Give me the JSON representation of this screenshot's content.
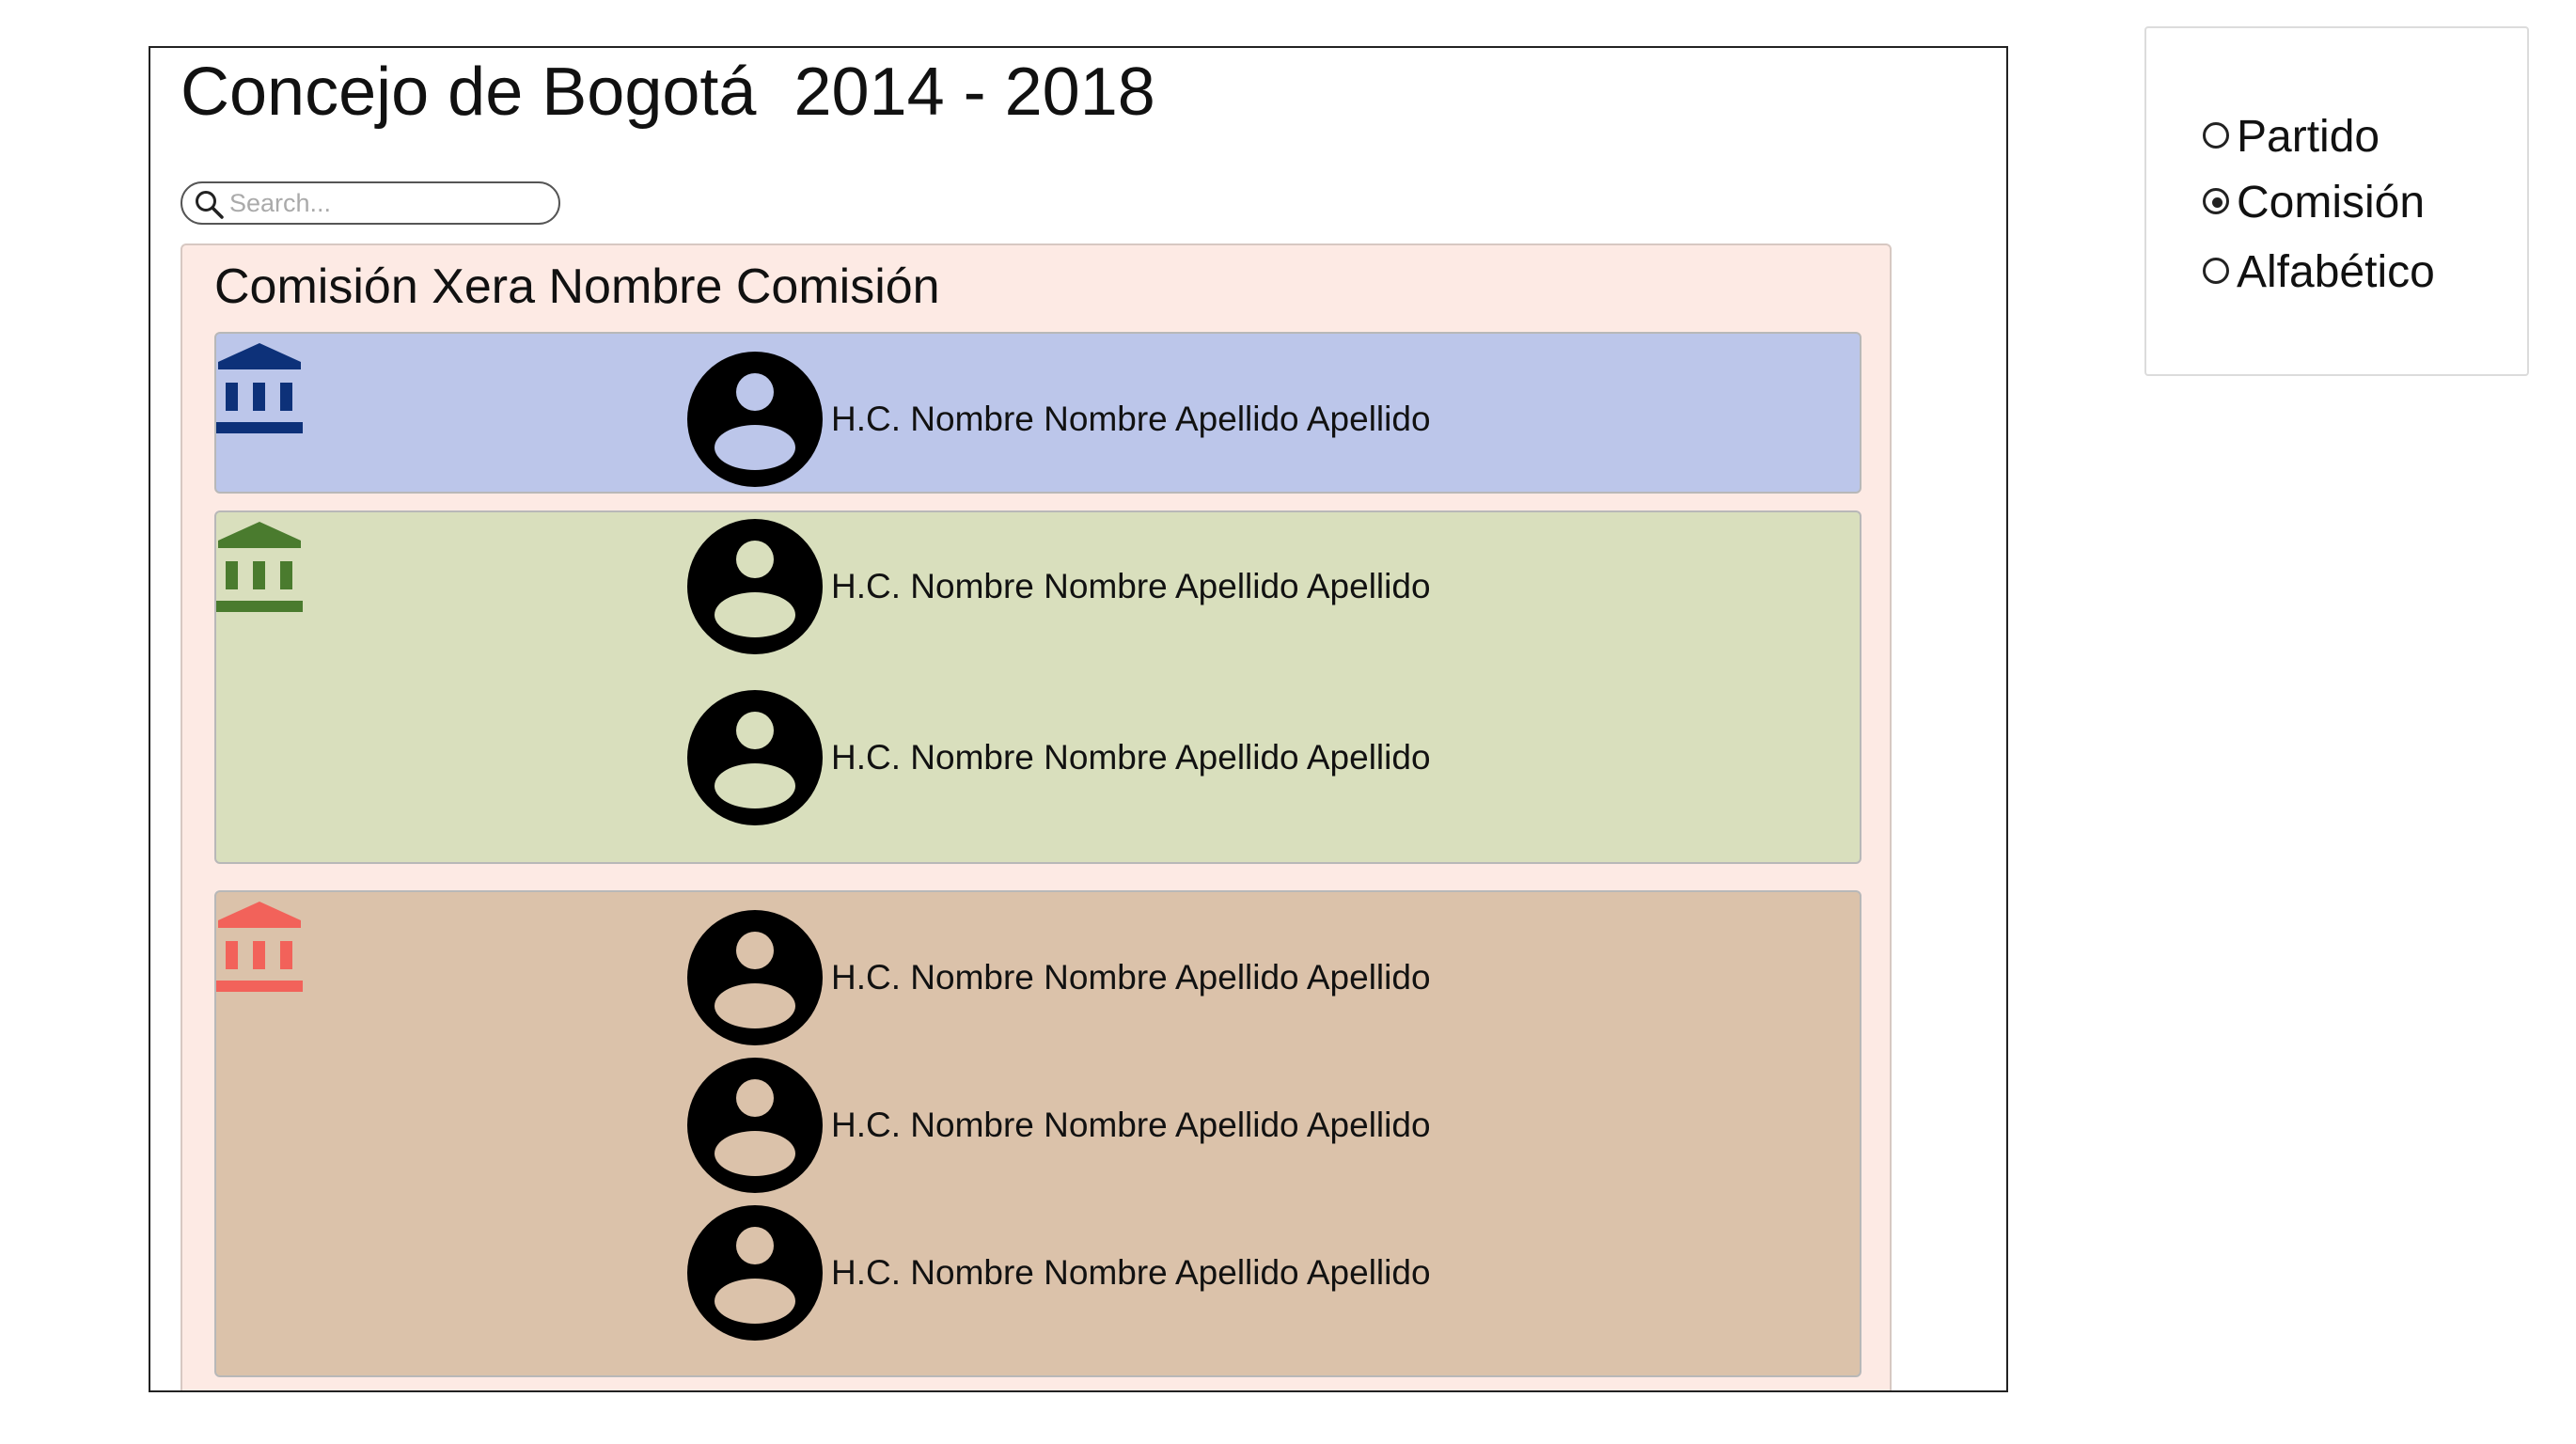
{
  "header": {
    "title": "Concejo de Bogotá  2014 - 2018"
  },
  "search": {
    "placeholder": "Search...",
    "value": ""
  },
  "commission": {
    "title": "Comisión Xera Nombre Comisión",
    "groups": [
      {
        "background": "#bcc6ea",
        "icon": "institution-icon",
        "icon_color": "#0d3179",
        "members": [
          {
            "name": "H.C. Nombre Nombre Apellido Apellido",
            "avatar_fill": "#bcc6ea"
          }
        ]
      },
      {
        "background": "#d9dfbd",
        "icon": "institution-icon",
        "icon_color": "#4a7b2e",
        "members": [
          {
            "name": "H.C. Nombre Nombre Apellido Apellido",
            "avatar_fill": "#d9dfbd"
          },
          {
            "name": "H.C. Nombre Nombre Apellido Apellido",
            "avatar_fill": "#d9dfbd"
          }
        ]
      },
      {
        "background": "#dbc2aa",
        "icon": "institution-icon",
        "icon_color": "#f2625a",
        "members": [
          {
            "name": "H.C. Nombre Nombre Apellido Apellido",
            "avatar_fill": "#dbc2aa"
          },
          {
            "name": "H.C. Nombre Nombre Apellido Apellido",
            "avatar_fill": "#dbc2aa"
          },
          {
            "name": "H.C. Nombre Nombre Apellido Apellido",
            "avatar_fill": "#dbc2aa"
          }
        ]
      }
    ]
  },
  "sort_options": {
    "items": [
      {
        "label": "Partido",
        "selected": false
      },
      {
        "label": "Comisión",
        "selected": true
      },
      {
        "label": "Alfabético",
        "selected": false
      }
    ]
  }
}
